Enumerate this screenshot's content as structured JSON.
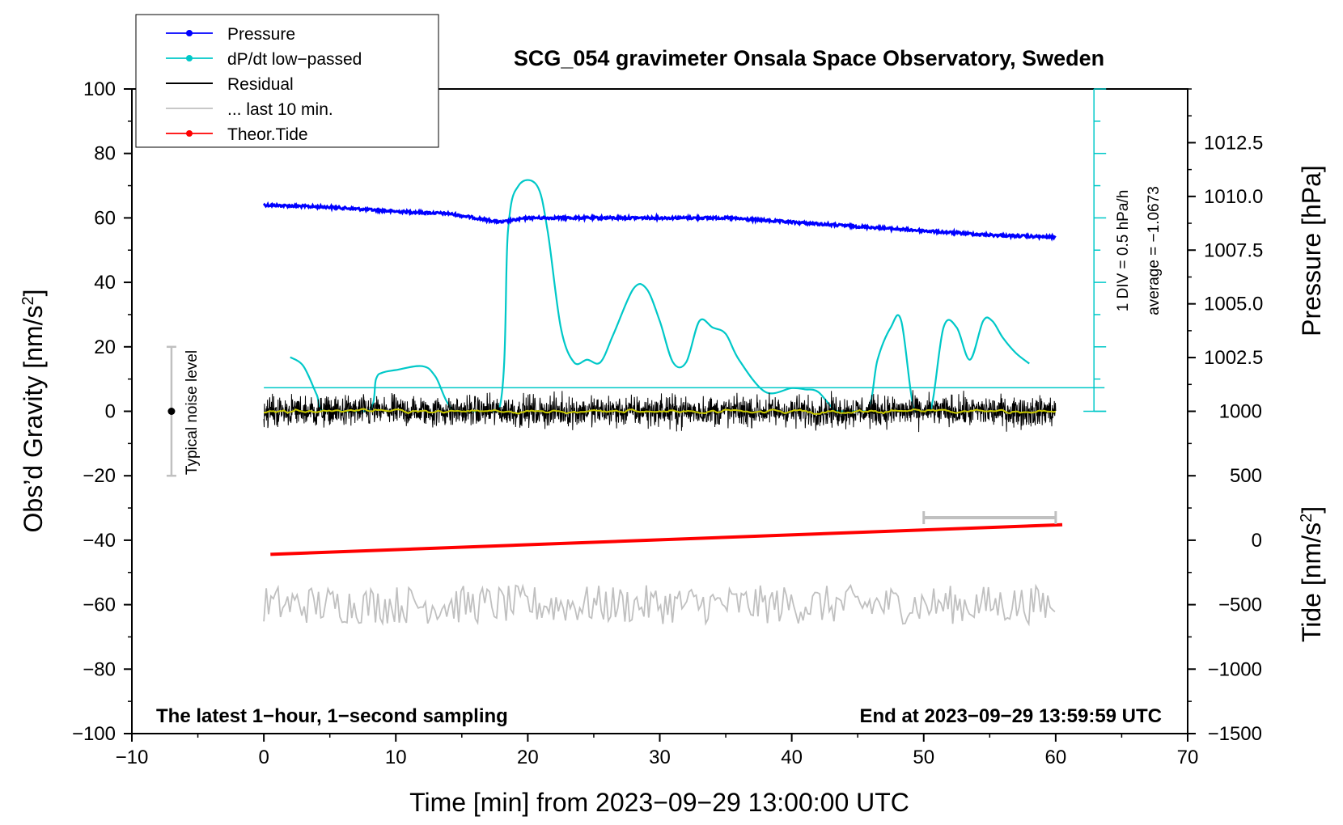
{
  "chart_data": {
    "type": "line",
    "title": "SCG_054 gravimeter Onsala Space Observatory, Sweden",
    "xlabel": "Time [min] from 2023−09−29 13:00:00 UTC",
    "ylabel_left": "Obs’d Gravity [nm/s",
    "ylabel_left_sup": "2",
    "ylabel_left_close": "]",
    "ylabel_pressure": "Pressure [hPa]",
    "ylabel_tide": "Tide [nm/s",
    "ylabel_tide_sup": "2",
    "ylabel_tide_close": "]",
    "xlim": [
      -10,
      70
    ],
    "ylim": [
      -100,
      100
    ],
    "x_ticks": [
      "−10",
      "0",
      "10",
      "20",
      "30",
      "40",
      "50",
      "60",
      "70"
    ],
    "x_tick_values": [
      -10,
      0,
      10,
      20,
      30,
      40,
      50,
      60,
      70
    ],
    "y_ticks": [
      "100",
      "80",
      "60",
      "40",
      "20",
      "0",
      "−20",
      "−40",
      "−60",
      "−80",
      "−100"
    ],
    "y_tick_values": [
      100,
      80,
      60,
      40,
      20,
      0,
      -20,
      -40,
      -60,
      -80,
      -100
    ],
    "pressure_axis": {
      "range": [
        1000.0,
        1015.0
      ],
      "ticks": [
        "1012.5",
        "1010.0",
        "1007.5",
        "1005.0",
        "1002.5"
      ],
      "tick_values": [
        1012.5,
        1010.0,
        1007.5,
        1005.0,
        1002.5
      ]
    },
    "tide_axis": {
      "range": [
        -1500,
        1000
      ],
      "ticks": [
        "1000",
        "500",
        "0",
        "−500",
        "−1000",
        "−1500"
      ],
      "tick_values": [
        1000,
        500,
        0,
        -500,
        -1000,
        -1500
      ]
    },
    "legend": [
      {
        "label": "Pressure",
        "color": "#0000ff",
        "marker": true
      },
      {
        "label": "dP/dt low−passed",
        "color": "#00c8c8",
        "marker": true
      },
      {
        "label": "Residual",
        "color": "#000000",
        "marker": false
      },
      {
        "label": "... last 10 min.",
        "color": "#c0c0c0",
        "marker": false
      },
      {
        "label": "Theor.Tide",
        "color": "#ff0000",
        "marker": true
      }
    ],
    "series": [
      {
        "name": "Pressure",
        "axis": "pressure",
        "color": "#0000ff",
        "x": [
          0,
          5,
          10,
          14,
          17,
          18,
          20,
          25,
          30,
          35,
          40,
          45,
          50,
          55,
          60
        ],
        "y": [
          1009.6,
          1009.5,
          1009.3,
          1009.2,
          1008.9,
          1008.8,
          1009.0,
          1009.0,
          1009.0,
          1009.0,
          1008.8,
          1008.6,
          1008.4,
          1008.2,
          1008.1
        ]
      },
      {
        "name": "dP/dt low-passed",
        "axis": "dpdt",
        "color": "#00c8c8",
        "x": [
          2,
          3,
          4,
          4.6,
          7.9,
          8.5,
          9,
          10,
          12,
          13,
          14.5,
          17.8,
          18.5,
          19.3,
          20.7,
          21.5,
          22.5,
          23.5,
          24.5,
          25.5,
          26.5,
          28,
          29,
          30,
          31,
          32,
          33,
          34,
          35,
          36,
          38,
          40,
          41,
          42,
          43.5,
          45.7,
          46.5,
          47.5,
          48.3,
          49.3,
          50.5,
          51.5,
          52.5,
          53.5,
          54.5,
          55.2,
          56,
          57,
          58
        ],
        "y": [
          -0.83,
          -0.9,
          -1.12,
          -1.25,
          -1.25,
          -1.0,
          -0.95,
          -0.93,
          -0.9,
          -0.98,
          -1.25,
          -1.25,
          0.15,
          0.5,
          0.5,
          0.15,
          -0.6,
          -0.87,
          -0.85,
          -0.87,
          -0.65,
          -0.3,
          -0.3,
          -0.55,
          -0.87,
          -0.87,
          -0.55,
          -0.6,
          -0.65,
          -0.85,
          -1.1,
          -1.07,
          -1.08,
          -1.1,
          -1.25,
          -1.25,
          -0.85,
          -0.6,
          -0.55,
          -1.25,
          -1.25,
          -0.6,
          -0.6,
          -0.85,
          -0.55,
          -0.55,
          -0.68,
          -0.8,
          -0.88
        ]
      },
      {
        "name": "Residual",
        "axis": "gravity",
        "color": "#000000",
        "x_range": [
          0,
          60
        ],
        "amplitude": 7
      },
      {
        "name": "Residual smoothed",
        "axis": "gravity",
        "color": "#c8c800",
        "x_range": [
          0,
          60
        ],
        "amplitude": 1.5
      },
      {
        "name": "... last 10 min.",
        "axis": "gravity_offset",
        "color": "#c0c0c0",
        "x_range": [
          0,
          60
        ],
        "center": -60,
        "amplitude": 6
      },
      {
        "name": "Theor.Tide",
        "axis": "tide",
        "color": "#ff0000",
        "x": [
          0.5,
          60.5
        ],
        "y": [
          -110,
          120
        ]
      }
    ],
    "dpdt_axis": {
      "scale_label": "1 DIV = 0.5 hPa/h",
      "average_label": "average = −1.0673",
      "average": -1.0673,
      "range": [
        -1.25,
        1.25
      ],
      "divisions": [
        -1.25,
        -0.75,
        -0.25,
        0.25,
        0.75,
        1.25
      ]
    },
    "noise_bar": {
      "x": -7,
      "center": 0,
      "low": -20,
      "high": 20,
      "label": "Typical noise level"
    },
    "time_scale_bar": {
      "from": 50,
      "to": 60,
      "gravity": -33
    },
    "bottom_left_note": "The latest 1−hour, 1−second sampling",
    "bottom_right_note": "End at 2023−09−29 13:59:59 UTC"
  }
}
